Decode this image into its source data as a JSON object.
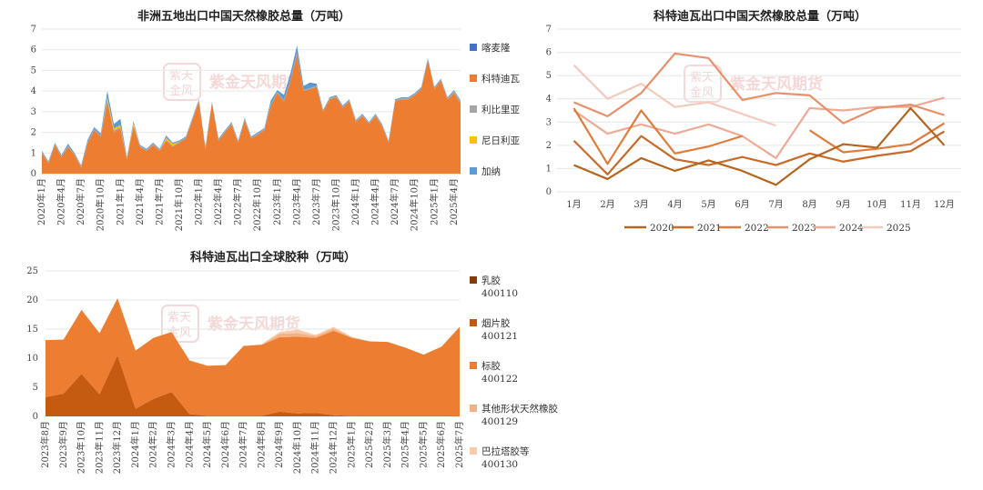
{
  "chart_data": [
    {
      "type": "area",
      "title": "非洲五地出口中国天然橡胶总量（万吨）",
      "ylim": [
        0,
        7
      ],
      "yticks": [
        0,
        1,
        2,
        3,
        4,
        5,
        6,
        7
      ],
      "xtick_labels": [
        "2020年1月",
        "2020年4月",
        "2020年7月",
        "2020年10月",
        "2021年1月",
        "2021年4月",
        "2021年7月",
        "2021年10月",
        "2022年1月",
        "2022年4月",
        "2022年7月",
        "2022年10月",
        "2023年1月",
        "2023年4月",
        "2023年7月",
        "2023年10月",
        "2024年1月",
        "2024年4月",
        "2024年7月",
        "2024年10月",
        "2025年1月",
        "2025年4月"
      ],
      "legend": [
        "喀麦隆",
        "科特迪瓦",
        "利比里亚",
        "尼日利亚",
        "加纳"
      ],
      "colors": {
        "喀麦隆": "#4472c4",
        "科特迪瓦": "#ed7d31",
        "利比里亚": "#a5a5a5",
        "尼日利亚": "#ffc000",
        "加纳": "#5b9bd5"
      },
      "series": [
        {
          "name": "科特迪瓦",
          "values": [
            1.0,
            0.5,
            1.4,
            0.8,
            1.3,
            0.9,
            0.3,
            1.5,
            2.1,
            1.8,
            3.5,
            2.0,
            2.2,
            0.7,
            2.3,
            1.3,
            1.1,
            1.4,
            1.1,
            1.6,
            1.3,
            1.5,
            1.7,
            2.6,
            3.5,
            1.2,
            3.4,
            1.6,
            2.0,
            2.4,
            1.5,
            2.6,
            1.7,
            1.9,
            2.1,
            3.3,
            3.9,
            3.5,
            4.5,
            5.8,
            4.0,
            4.1,
            4.2,
            3.0,
            3.6,
            3.7,
            3.2,
            3.5,
            2.5,
            2.8,
            2.4,
            2.8,
            2.3,
            1.5,
            3.5,
            3.6,
            3.6,
            3.8,
            4.1,
            5.5,
            4.1,
            4.5,
            3.6,
            3.9,
            3.4
          ]
        },
        {
          "name": "利比里亚",
          "values": [
            0.05,
            0.05,
            0.05,
            0.05,
            0.05,
            0.05,
            0.05,
            0.05,
            0.05,
            0.05,
            0.1,
            0.1,
            0.05,
            0.05,
            0.05,
            0.05,
            0.05,
            0.05,
            0.05,
            0.05,
            0.05,
            0.05,
            0.05,
            0.05,
            0.05,
            0.05,
            0.05,
            0.05,
            0.05,
            0.05,
            0.05,
            0.05,
            0.05,
            0.05,
            0.05,
            0.05,
            0.05,
            0.05,
            0.05,
            0.05,
            0.05,
            0.05,
            0.05,
            0.05,
            0.05,
            0.05,
            0.05,
            0.05,
            0.05,
            0.05,
            0.05,
            0.05,
            0.05,
            0.05,
            0.05,
            0.05,
            0.05,
            0.05,
            0.05,
            0.05,
            0.05,
            0.05,
            0.05,
            0.1,
            0.1
          ]
        },
        {
          "name": "尼日利亚",
          "values": [
            0,
            0,
            0,
            0,
            0,
            0,
            0,
            0,
            0,
            0,
            0.1,
            0.1,
            0.1,
            0,
            0.1,
            0,
            0,
            0,
            0,
            0.1,
            0.1,
            0,
            0,
            0,
            0,
            0,
            0,
            0,
            0,
            0,
            0,
            0,
            0,
            0,
            0,
            0,
            0,
            0,
            0,
            0,
            0,
            0,
            0,
            0,
            0,
            0,
            0,
            0,
            0,
            0,
            0,
            0,
            0,
            0,
            0,
            0,
            0,
            0,
            0,
            0,
            0,
            0,
            0,
            0,
            0
          ]
        },
        {
          "name": "加纳",
          "values": [
            0.05,
            0.05,
            0.05,
            0.05,
            0.1,
            0.05,
            0.05,
            0.1,
            0.1,
            0.1,
            0.3,
            0.2,
            0.3,
            0.05,
            0.1,
            0.05,
            0.05,
            0.05,
            0.05,
            0.1,
            0.05,
            0.05,
            0.05,
            0.05,
            0.05,
            0.05,
            0.05,
            0.05,
            0.05,
            0.05,
            0.05,
            0.05,
            0.05,
            0.05,
            0.05,
            0.2,
            0.1,
            0.2,
            0.2,
            0.3,
            0.2,
            0.2,
            0.05,
            0.05,
            0.05,
            0.05,
            0.05,
            0.05,
            0.05,
            0.05,
            0.05,
            0.05,
            0.05,
            0.05,
            0.05,
            0.05,
            0.05,
            0.05,
            0.05,
            0.05,
            0.05,
            0.05,
            0.05,
            0.05,
            0.05
          ]
        },
        {
          "name": "喀麦隆",
          "values": [
            0,
            0,
            0,
            0,
            0,
            0,
            0,
            0,
            0,
            0,
            0,
            0,
            0,
            0,
            0,
            0,
            0,
            0,
            0,
            0,
            0,
            0,
            0,
            0,
            0,
            0,
            0,
            0,
            0,
            0,
            0,
            0,
            0,
            0,
            0,
            0,
            0,
            0.05,
            0.1,
            0.05,
            0,
            0.05,
            0.05,
            0,
            0,
            0,
            0,
            0,
            0,
            0,
            0,
            0,
            0,
            0,
            0,
            0,
            0,
            0,
            0,
            0,
            0,
            0,
            0,
            0,
            0
          ]
        }
      ]
    },
    {
      "type": "line",
      "title": "科特迪瓦出口中国天然橡胶总量（万吨）",
      "ylim": [
        0,
        7
      ],
      "yticks": [
        0,
        1,
        2,
        3,
        4,
        5,
        6,
        7
      ],
      "categories": [
        "1月",
        "2月",
        "3月",
        "4月",
        "5月",
        "6月",
        "7月",
        "8月",
        "9月",
        "10月",
        "11月",
        "12月"
      ],
      "legend": [
        "2020",
        "2021",
        "2022",
        "2023",
        "2024",
        "2025"
      ],
      "series": [
        {
          "name": "2020",
          "color": "#b5651d",
          "values": [
            1.15,
            0.55,
            1.45,
            0.9,
            1.35,
            0.9,
            0.3,
            1.4,
            2.05,
            1.9,
            3.6,
            2.0
          ]
        },
        {
          "name": "2021",
          "color": "#c96a28",
          "values": [
            2.2,
            0.75,
            2.4,
            1.4,
            1.15,
            1.5,
            1.15,
            1.65,
            1.3,
            1.55,
            1.75,
            2.6
          ]
        },
        {
          "name": "2022",
          "color": "#e07b39",
          "values": [
            3.6,
            1.2,
            3.5,
            1.65,
            1.95,
            2.4,
            null,
            2.65,
            1.7,
            1.85,
            2.05,
            2.95
          ]
        },
        {
          "name": "2023",
          "color": "#e8906a",
          "values": [
            3.85,
            3.25,
            4.25,
            5.95,
            5.75,
            3.95,
            4.25,
            4.15,
            2.95,
            3.6,
            3.75,
            3.3
          ]
        },
        {
          "name": "2024",
          "color": "#f0a994",
          "values": [
            3.5,
            2.5,
            2.9,
            2.5,
            2.9,
            2.4,
            1.45,
            3.6,
            3.5,
            3.65,
            3.65,
            4.05
          ]
        },
        {
          "name": "2025",
          "color": "#f5c9bc",
          "values": [
            5.45,
            4.0,
            4.65,
            3.65,
            3.85,
            3.35,
            2.85,
            null,
            null,
            null,
            null,
            null
          ]
        }
      ]
    },
    {
      "type": "area",
      "title": "科特迪瓦出口全球胶种（万吨）",
      "ylim": [
        0,
        25
      ],
      "yticks": [
        0,
        5,
        10,
        15,
        20,
        25
      ],
      "categories": [
        "2023年8月",
        "2023年9月",
        "2023年10月",
        "2023年11月",
        "2023年12月",
        "2024年1月",
        "2024年2月",
        "2024年3月",
        "2024年4月",
        "2024年5月",
        "2024年6月",
        "2024年7月",
        "2024年8月",
        "2024年9月",
        "2024年10月",
        "2024年11月",
        "2024年12月",
        "2025年1月",
        "2025年2月",
        "2025年3月",
        "2025年4月",
        "2025年5月",
        "2025年6月",
        "2025年7月"
      ],
      "legend": [
        {
          "name": "乳胶",
          "code": "400110",
          "color": "#843c0c"
        },
        {
          "name": "烟片胶",
          "code": "400121",
          "color": "#c55a11"
        },
        {
          "name": "标胶",
          "code": "400122",
          "color": "#ed7d31"
        },
        {
          "name": "其他形状天然橡胶",
          "code": "400129",
          "color": "#f4b183"
        },
        {
          "name": "巴拉塔胶等",
          "code": "400130",
          "color": "#f8cbad"
        }
      ],
      "series": [
        {
          "name": "乳胶",
          "values": [
            0,
            0,
            0,
            0,
            0,
            0,
            0,
            0,
            0,
            0,
            0,
            0,
            0,
            0,
            0,
            0,
            0,
            0,
            0,
            0,
            0,
            0,
            0,
            0
          ]
        },
        {
          "name": "烟片胶",
          "values": [
            3.3,
            3.9,
            7.3,
            3.8,
            10.5,
            1.3,
            3.0,
            4.2,
            0.4,
            0.1,
            0.1,
            0.1,
            0.1,
            0.8,
            0.5,
            0.6,
            0.2,
            0.1,
            0.1,
            0.1,
            0.1,
            0.1,
            0.1,
            0.1
          ]
        },
        {
          "name": "标胶",
          "values": [
            9.8,
            9.3,
            11.0,
            10.5,
            9.8,
            10.0,
            10.5,
            10.3,
            9.2,
            8.6,
            8.7,
            12.0,
            12.2,
            12.8,
            13.2,
            12.9,
            14.5,
            13.4,
            12.8,
            12.7,
            11.7,
            10.5,
            11.9,
            15.3
          ]
        },
        {
          "name": "其他形状天然橡胶",
          "values": [
            0,
            0,
            0,
            0,
            0,
            0,
            0,
            0,
            0,
            0,
            0,
            0,
            0,
            0.6,
            0.6,
            0.3,
            0.4,
            0.1,
            0,
            0,
            0,
            0,
            0,
            0
          ]
        },
        {
          "name": "巴拉塔胶等",
          "values": [
            0,
            0,
            0,
            0,
            0,
            0,
            0,
            0,
            0,
            0,
            0,
            0,
            0.1,
            0.3,
            0.6,
            0.2,
            0.3,
            0.1,
            0,
            0,
            0,
            0,
            0,
            0
          ]
        }
      ]
    }
  ],
  "watermark": {
    "brand": "紫金天风期货",
    "stamp": "紫天金风"
  }
}
